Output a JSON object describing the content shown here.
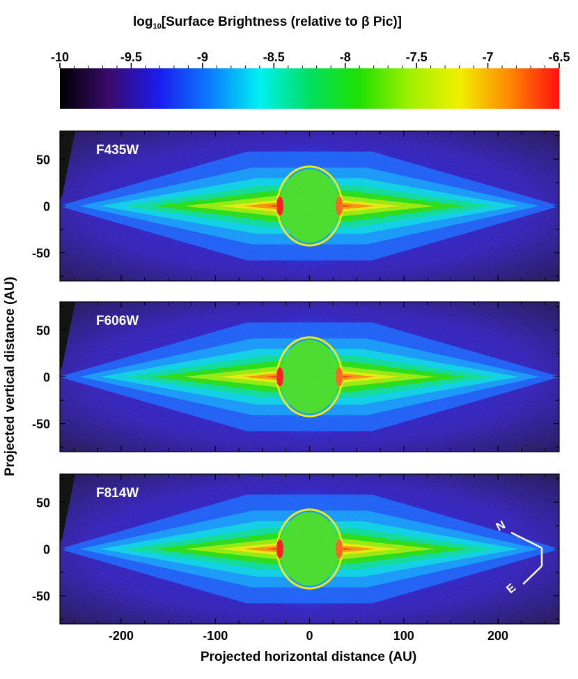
{
  "chart_data": {
    "type": "heatmap",
    "colorbar": {
      "title_main": "log",
      "title_sub": "10",
      "title_rest": "[Surface Brightness (relative to β Pic)]",
      "ticks": [
        "-10",
        "-9.5",
        "-9",
        "-8.5",
        "-8",
        "-7.5",
        "-7",
        "-6.5"
      ],
      "tick_values": [
        -10,
        -9.5,
        -9,
        -8.5,
        -8,
        -7.5,
        -7,
        -6.5
      ],
      "range": [
        -10,
        -6.5
      ],
      "colormap": [
        "#000000",
        "#3a0a6e",
        "#1a1cf0",
        "#0a7cff",
        "#00f0f0",
        "#00e060",
        "#20e000",
        "#9ff000",
        "#f0f000",
        "#ff8800",
        "#ff1010"
      ]
    },
    "panels": [
      {
        "label": "F435W"
      },
      {
        "label": "F606W"
      },
      {
        "label": "F814W"
      }
    ],
    "x_axis": {
      "label": "Projected horizontal distance (AU)",
      "range": [
        -265,
        265
      ],
      "ticks": [
        "-200",
        "-100",
        "0",
        "100",
        "200"
      ],
      "tick_values": [
        -200,
        -100,
        0,
        100,
        200
      ]
    },
    "y_axis": {
      "label": "Projected vertical distance (AU)",
      "range": [
        -80,
        80
      ],
      "ticks": [
        "50",
        "0",
        "-50"
      ],
      "tick_values": [
        50,
        0,
        -50
      ]
    },
    "compass": {
      "north": "N",
      "east": "E"
    },
    "disk": {
      "midplane_y": 0,
      "occulting_mask_radius": 30,
      "peak_log_brightness": -6.5
    }
  }
}
